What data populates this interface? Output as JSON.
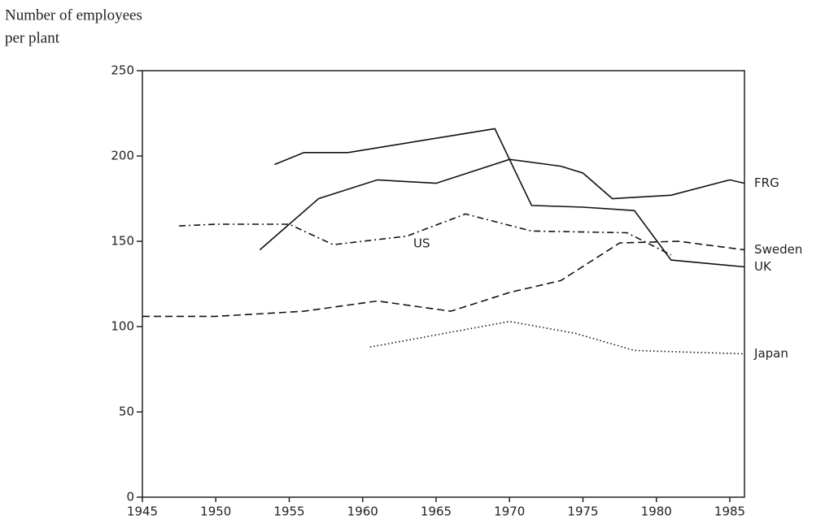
{
  "chart_data": {
    "type": "line",
    "ylabel": [
      "Number of employees",
      "per plant"
    ],
    "xlim": [
      1945,
      1986
    ],
    "ylim": [
      0,
      250
    ],
    "xticks": [
      1945,
      1950,
      1955,
      1960,
      1965,
      1970,
      1975,
      1980,
      1985
    ],
    "yticks": [
      0,
      50,
      100,
      150,
      200,
      250
    ],
    "series": [
      {
        "name": "FRG",
        "color": "#111111",
        "dash": "none",
        "x": [
          1953,
          1957,
          1961,
          1965,
          1970,
          1973.5,
          1975,
          1977,
          1981,
          1985,
          1986
        ],
        "values": [
          145,
          175,
          186,
          184,
          198,
          194,
          190,
          175,
          177,
          186,
          184
        ]
      },
      {
        "name": "UK",
        "color": "#111111",
        "dash": "none",
        "x": [
          1954,
          1956,
          1959,
          1969,
          1971.5,
          1975,
          1978.5,
          1981,
          1986
        ],
        "values": [
          195,
          202,
          202,
          216,
          171,
          170,
          168,
          139,
          135
        ]
      },
      {
        "name": "US",
        "color": "#111111",
        "dash": "8 4 2 4",
        "x": [
          1947.5,
          1950,
          1955,
          1958,
          1963,
          1967,
          1971.5,
          1978,
          1981
        ],
        "values": [
          159,
          160,
          160,
          148,
          153,
          166,
          156,
          155,
          142
        ]
      },
      {
        "name": "Sweden",
        "color": "#111111",
        "dash": "9 5",
        "x": [
          1945,
          1950,
          1956,
          1961,
          1966,
          1970,
          1973.5,
          1977.5,
          1981.5,
          1986
        ],
        "values": [
          106,
          106,
          109,
          115,
          109,
          120,
          127,
          149,
          150,
          145
        ]
      },
      {
        "name": "Japan",
        "color": "#111111",
        "dash": "1.5 3",
        "x": [
          1960.5,
          1970,
          1974.5,
          1978.5,
          1986
        ],
        "values": [
          88,
          103,
          96,
          86,
          84
        ]
      }
    ]
  }
}
